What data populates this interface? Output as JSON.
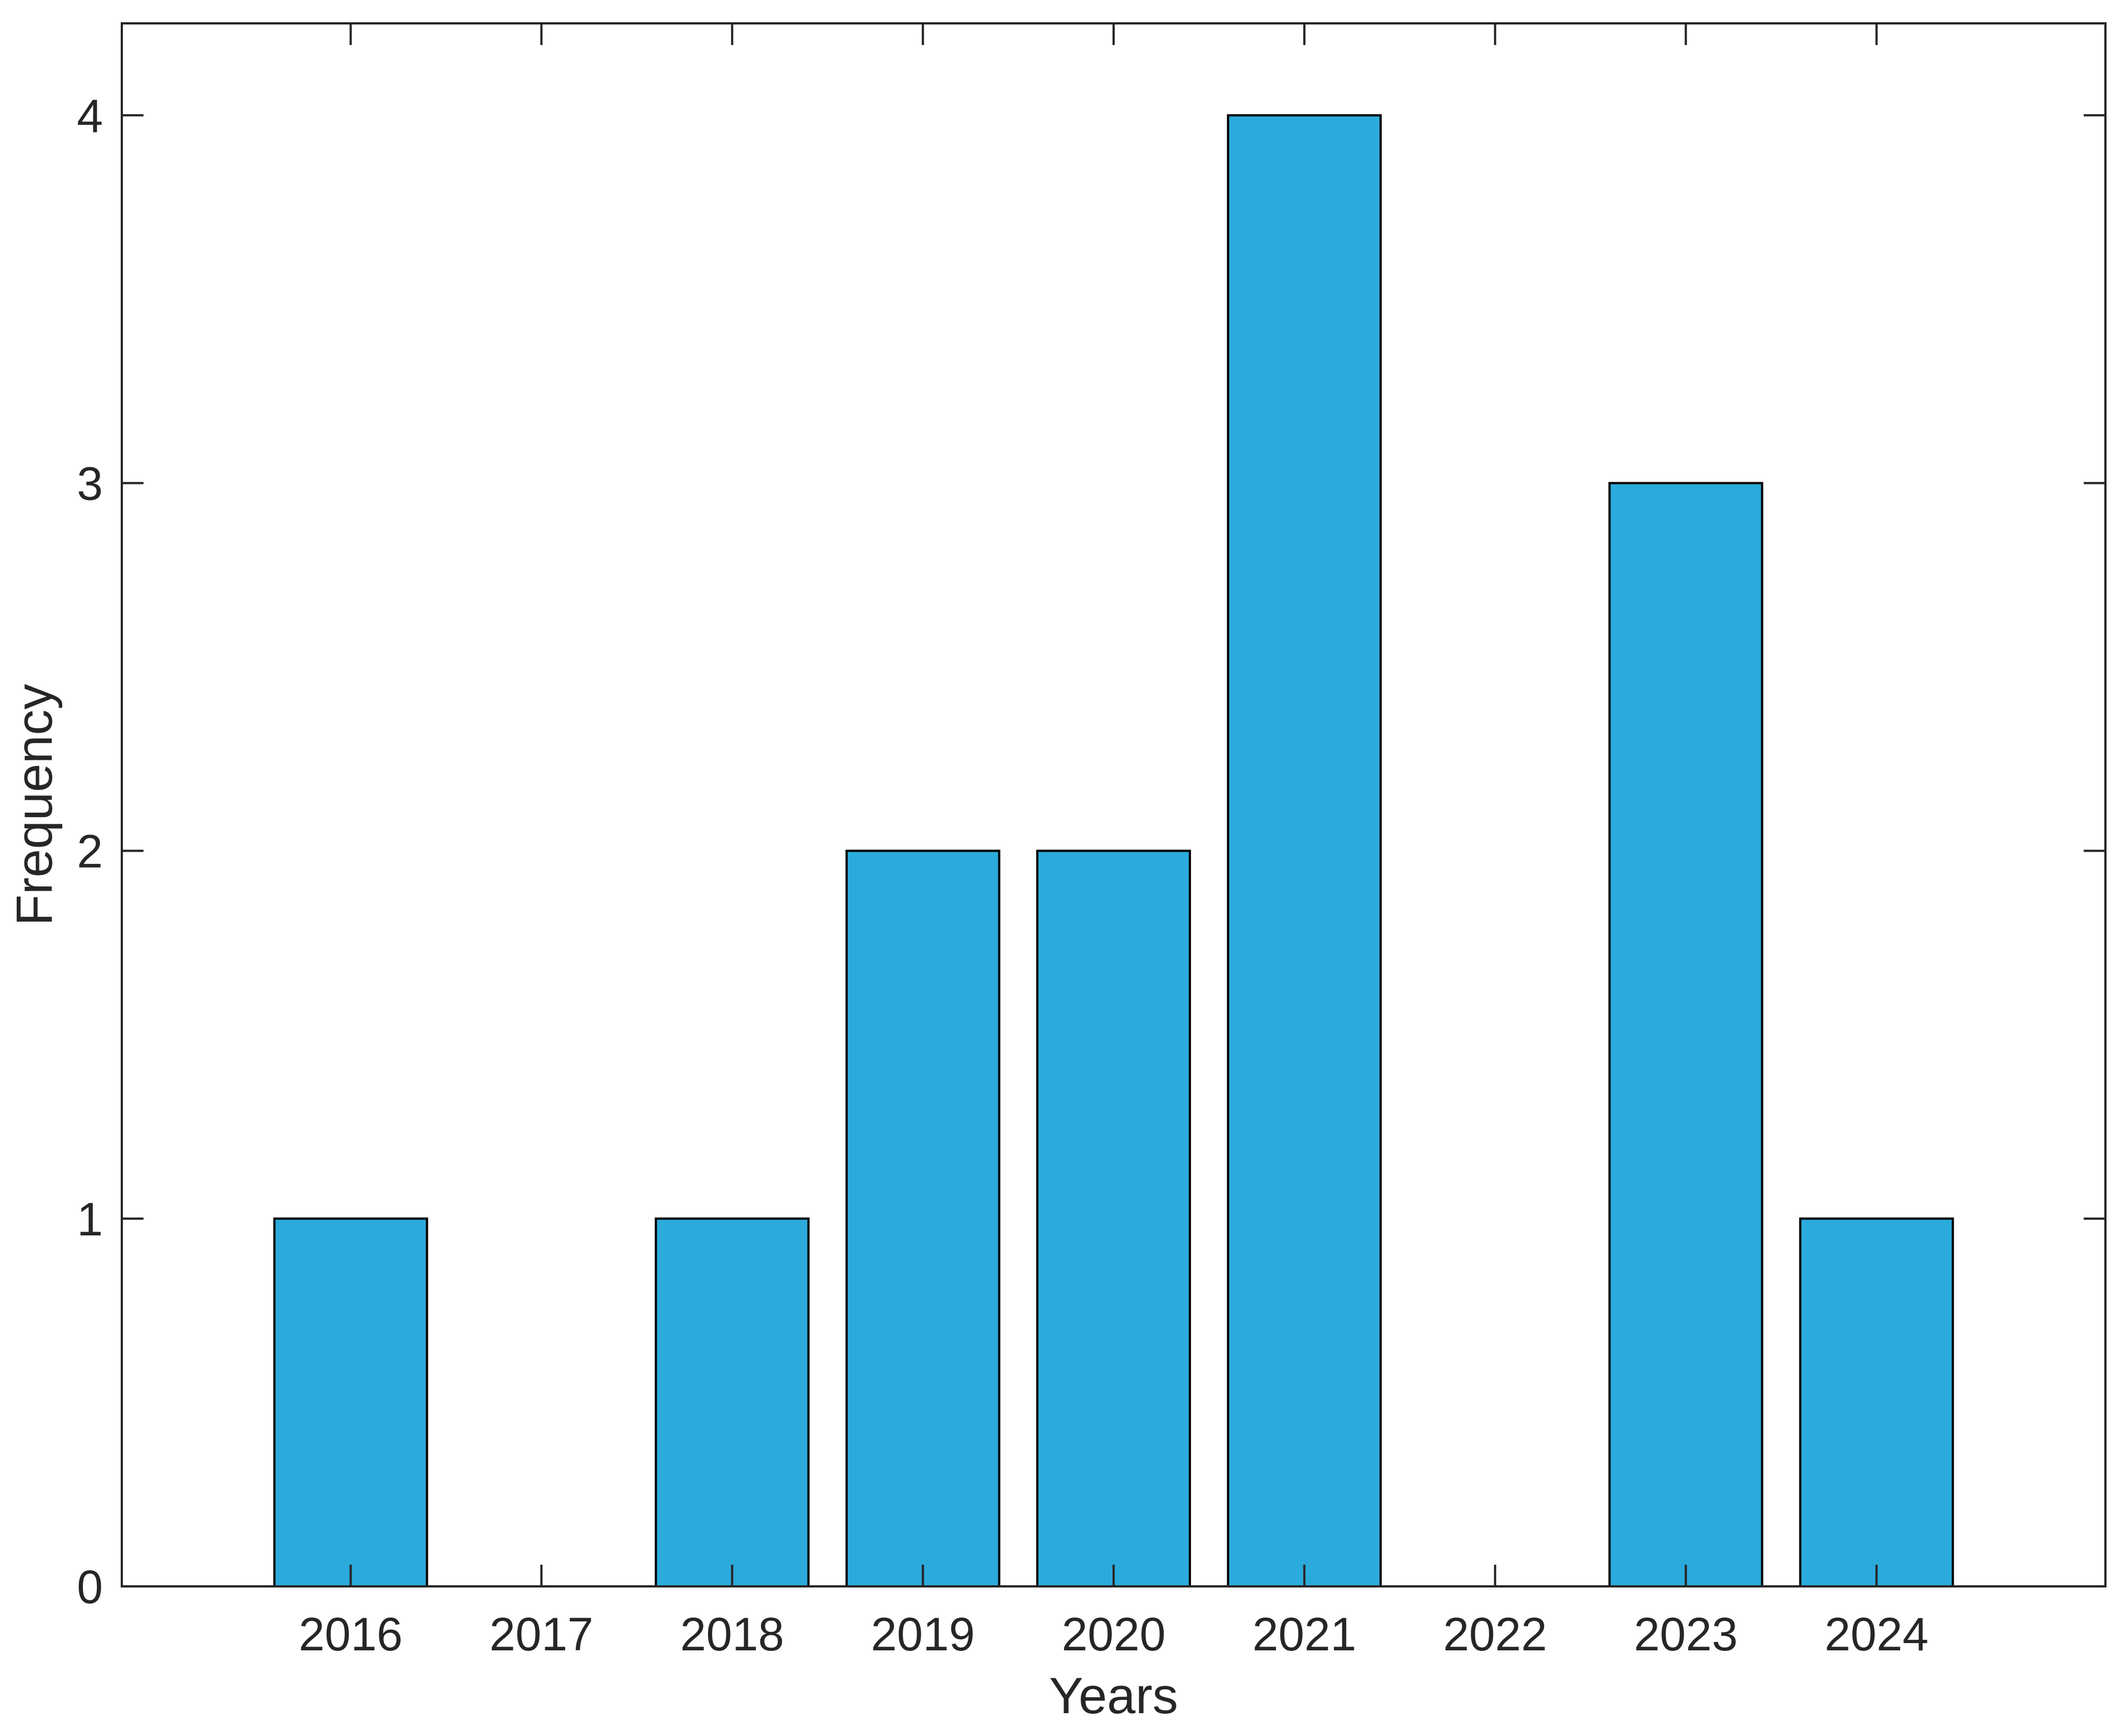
{
  "chart_data": {
    "type": "bar",
    "title": "",
    "xlabel": "Years",
    "ylabel": "Frequency",
    "categories": [
      "2016",
      "2017",
      "2018",
      "2019",
      "2020",
      "2021",
      "2022",
      "2023",
      "2024"
    ],
    "values": [
      1,
      0,
      1,
      2,
      2,
      4,
      0,
      3,
      1
    ],
    "yticks": [
      0,
      1,
      2,
      3,
      4
    ],
    "ylim": [
      0,
      4.25
    ],
    "xlim": [
      2014.8,
      2025.2
    ],
    "bar_width_fraction": 0.8,
    "grid": "off",
    "legend": "none",
    "box": "on",
    "tick_direction": "in",
    "colors": {
      "bar_fill": "#2BABDC",
      "bar_edge": "#000000",
      "axis": "#262626",
      "text": "#262626",
      "background": "#FFFFFF"
    }
  }
}
